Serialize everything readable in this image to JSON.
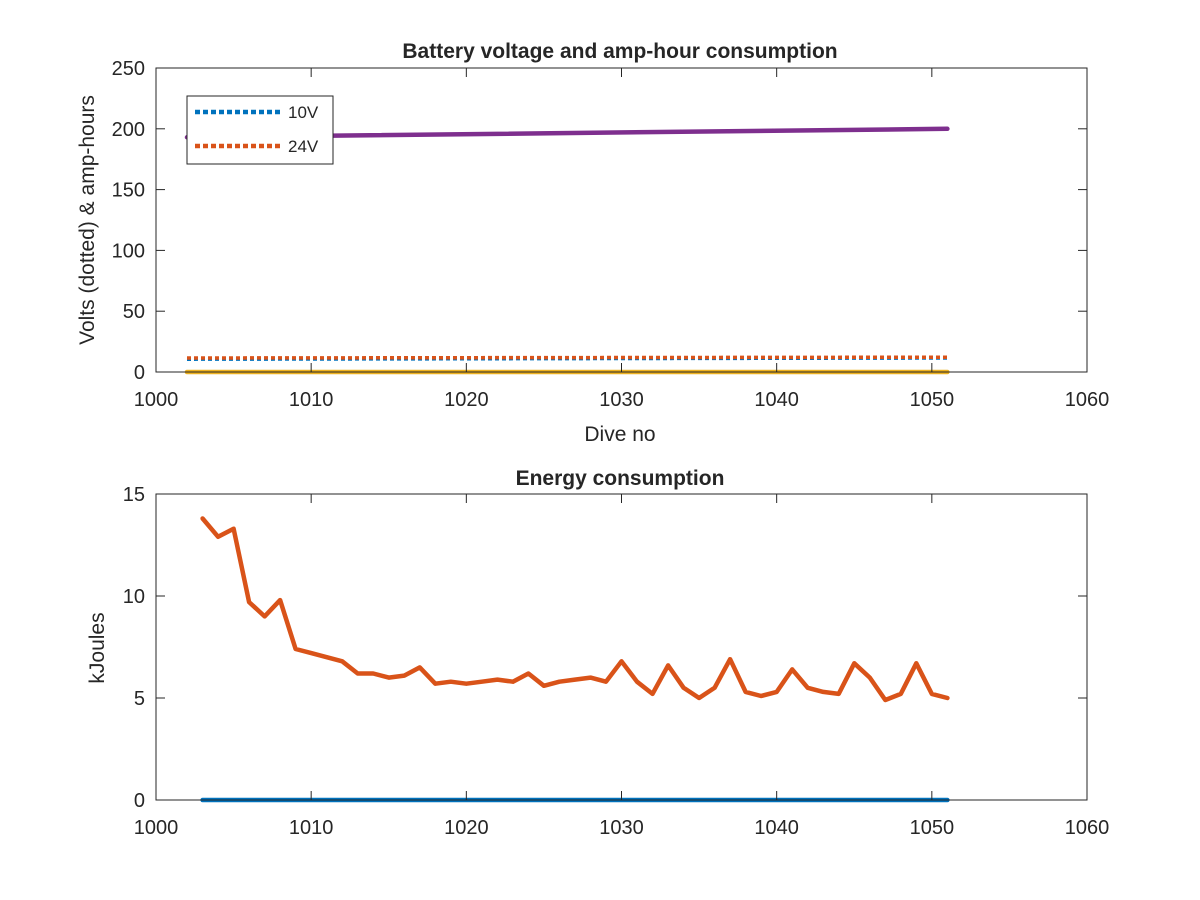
{
  "chart_data": [
    {
      "type": "line",
      "title": "Battery voltage and amp-hour consumption",
      "xlabel": "Dive no",
      "ylabel": "Volts (dotted) & amp-hours",
      "xlim": [
        1000,
        1060
      ],
      "ylim": [
        0,
        250
      ],
      "xticks": [
        1000,
        1010,
        1020,
        1030,
        1040,
        1050,
        1060
      ],
      "yticks": [
        0,
        50,
        100,
        150,
        200,
        250
      ],
      "grid": false,
      "legend_position": "top-left",
      "series": [
        {
          "name": "10V",
          "style": "dotted",
          "color": "#0072BD",
          "x": [
            1002,
            1051
          ],
          "y": [
            10.5,
            11.5
          ]
        },
        {
          "name": "24V",
          "style": "dotted",
          "color": "#D95319",
          "x": [
            1002,
            1051
          ],
          "y": [
            11.5,
            12.2
          ]
        },
        {
          "style": "solid",
          "color": "#7E2F8E",
          "x": [
            1002,
            1051
          ],
          "y": [
            193,
            200
          ]
        },
        {
          "style": "solid",
          "color": "#EDB120",
          "x": [
            1002,
            1051
          ],
          "y": [
            0,
            0
          ]
        }
      ]
    },
    {
      "type": "line",
      "title": "Energy consumption",
      "xlabel": "",
      "ylabel": "kJoules",
      "xlim": [
        1000,
        1060
      ],
      "ylim": [
        0,
        15
      ],
      "xticks": [
        1000,
        1010,
        1020,
        1030,
        1040,
        1050,
        1060
      ],
      "yticks": [
        0,
        5,
        10,
        15
      ],
      "grid": false,
      "series": [
        {
          "style": "solid",
          "color": "#D95319",
          "x": [
            1003,
            1004,
            1005,
            1006,
            1007,
            1008,
            1009,
            1010,
            1011,
            1012,
            1013,
            1014,
            1015,
            1016,
            1017,
            1018,
            1019,
            1020,
            1021,
            1022,
            1023,
            1024,
            1025,
            1026,
            1027,
            1028,
            1029,
            1030,
            1031,
            1032,
            1033,
            1034,
            1035,
            1036,
            1037,
            1038,
            1039,
            1040,
            1041,
            1042,
            1043,
            1044,
            1045,
            1046,
            1047,
            1048,
            1049,
            1050,
            1051
          ],
          "y": [
            13.8,
            12.9,
            13.3,
            9.7,
            9.0,
            9.8,
            7.4,
            7.2,
            7.0,
            6.8,
            6.2,
            6.2,
            6.0,
            6.1,
            6.5,
            5.7,
            5.8,
            5.7,
            5.8,
            5.9,
            5.8,
            6.2,
            5.6,
            5.8,
            5.9,
            6.0,
            5.8,
            6.8,
            5.8,
            5.2,
            6.6,
            5.5,
            5.0,
            5.5,
            6.9,
            5.3,
            5.1,
            5.3,
            6.4,
            5.5,
            5.3,
            5.2,
            6.7,
            6.0,
            4.9,
            5.2,
            6.7,
            5.2,
            5.0
          ]
        },
        {
          "style": "solid",
          "color": "#0072BD",
          "x": [
            1003,
            1051
          ],
          "y": [
            0,
            0
          ]
        }
      ]
    }
  ]
}
